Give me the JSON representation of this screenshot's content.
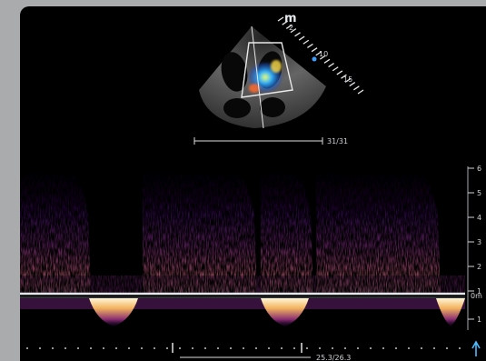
{
  "monitor": {
    "probe_mark": "m",
    "probe_sub": "2",
    "depth_labels": [
      "10",
      "15"
    ],
    "caliper_top_value": "31/31",
    "caliper_bottom_value": "25.3/26.3",
    "velocity_scale": [
      "6",
      "5",
      "4",
      "3",
      "2",
      "1",
      "0m",
      "1"
    ]
  },
  "colors": {
    "background": "#a9abad",
    "screen": "#000000",
    "spectrum_low": "#3b0f5e",
    "spectrum_mid": "#b24a8f",
    "spectrum_high": "#ffd77a",
    "baseline": "#dfe3e6",
    "scale_marker": "#4fb8ff"
  }
}
